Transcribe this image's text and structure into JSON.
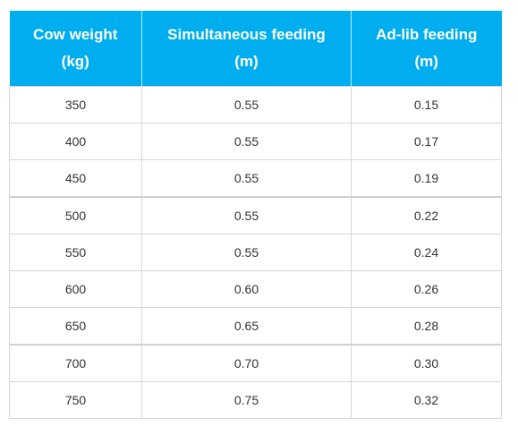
{
  "table": {
    "headers": [
      {
        "line1": "Cow weight",
        "line2": "(kg)"
      },
      {
        "line1": "Simultaneous feeding",
        "line2": "(m)"
      },
      {
        "line1": "Ad-lib feeding",
        "line2": "(m)"
      }
    ],
    "rows": [
      [
        "350",
        "0.55",
        "0.15"
      ],
      [
        "400",
        "0.55",
        "0.17"
      ],
      [
        "450",
        "0.55",
        "0.19"
      ],
      [
        "500",
        "0.55",
        "0.22"
      ],
      [
        "550",
        "0.55",
        "0.24"
      ],
      [
        "600",
        "0.60",
        "0.26"
      ],
      [
        "650",
        "0.65",
        "0.28"
      ],
      [
        "700",
        "0.70",
        "0.30"
      ],
      [
        "750",
        "0.75",
        "0.32"
      ]
    ]
  },
  "colors": {
    "header_bg": "#00aeef",
    "header_text": "#ffffff",
    "cell_text": "#333333",
    "grid": "#d6d6d6"
  }
}
